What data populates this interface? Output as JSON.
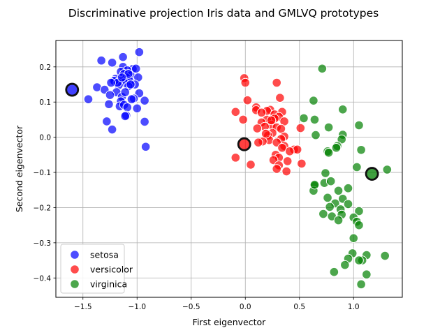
{
  "chart_data": {
    "type": "scatter",
    "title": "Discriminative projection Iris data and GMLVQ prototypes",
    "xlabel": "First eigenvector",
    "ylabel": "Second eigenvector",
    "xlim": [
      -1.75,
      1.45
    ],
    "ylim": [
      -0.455,
      0.275
    ],
    "xticks": [
      -1.5,
      -1.0,
      -0.5,
      0.0,
      0.5,
      1.0
    ],
    "xtick_labels": [
      "−1.5",
      "−1.0",
      "−0.5",
      "0.0",
      "0.5",
      "1.0"
    ],
    "yticks": [
      -0.4,
      -0.3,
      -0.2,
      -0.1,
      0.0,
      0.1,
      0.2
    ],
    "ytick_labels": [
      "−0.4",
      "−0.3",
      "−0.2",
      "−0.1",
      "0.0",
      "0.1",
      "0.2"
    ],
    "grid": true,
    "legend_position": "lower-left",
    "series": [
      {
        "name": "setosa",
        "color": "#0000ff",
        "points": [
          [
            -0.98,
            0.242
          ],
          [
            -1.13,
            0.228
          ],
          [
            -1.33,
            0.218
          ],
          [
            -1.23,
            0.212
          ],
          [
            -1.13,
            0.2
          ],
          [
            -1.04,
            0.194
          ],
          [
            -1.09,
            0.19
          ],
          [
            -1.15,
            0.186
          ],
          [
            -1.12,
            0.18
          ],
          [
            -1.06,
            0.176
          ],
          [
            -1.1,
            0.17
          ],
          [
            -0.99,
            0.17
          ],
          [
            -1.2,
            0.166
          ],
          [
            -1.22,
            0.16
          ],
          [
            -1.15,
            0.16
          ],
          [
            -1.07,
            0.16
          ],
          [
            -1.12,
            0.155
          ],
          [
            -1.02,
            0.15
          ],
          [
            -1.17,
            0.148
          ],
          [
            -1.08,
            0.145
          ],
          [
            -1.37,
            0.142
          ],
          [
            -1.3,
            0.135
          ],
          [
            -1.19,
            0.128
          ],
          [
            -0.98,
            0.125
          ],
          [
            -1.25,
            0.12
          ],
          [
            -1.14,
            0.115
          ],
          [
            -1.03,
            0.11
          ],
          [
            -1.45,
            0.108
          ],
          [
            -1.05,
            0.108
          ],
          [
            -0.93,
            0.104
          ],
          [
            -1.15,
            0.102
          ],
          [
            -1.26,
            0.094
          ],
          [
            -1.16,
            0.088
          ],
          [
            -1.12,
            0.092
          ],
          [
            -1.09,
            0.085
          ],
          [
            -1.0,
            0.082
          ],
          [
            -1.1,
            0.062
          ],
          [
            -1.11,
            0.06
          ],
          [
            -1.28,
            0.045
          ],
          [
            -0.93,
            0.044
          ],
          [
            -1.23,
            0.022
          ],
          [
            -0.92,
            -0.027
          ],
          [
            -1.21,
            0.16
          ],
          [
            -1.18,
            0.155
          ],
          [
            -1.08,
            0.18
          ],
          [
            -1.14,
            0.17
          ],
          [
            -1.11,
            0.128
          ],
          [
            -1.01,
            0.195
          ],
          [
            -1.24,
            0.155
          ],
          [
            -1.06,
            0.15
          ]
        ]
      },
      {
        "name": "versicolor",
        "color": "#ff0000",
        "points": [
          [
            -0.01,
            0.168
          ],
          [
            0.29,
            0.155
          ],
          [
            -0.0,
            0.155
          ],
          [
            0.32,
            0.112
          ],
          [
            0.02,
            0.105
          ],
          [
            0.1,
            0.085
          ],
          [
            0.1,
            0.077
          ],
          [
            -0.09,
            0.072
          ],
          [
            0.34,
            0.072
          ],
          [
            0.23,
            0.078
          ],
          [
            0.2,
            0.075
          ],
          [
            0.15,
            0.07
          ],
          [
            0.27,
            0.065
          ],
          [
            0.31,
            0.058
          ],
          [
            0.27,
            0.053
          ],
          [
            0.2,
            0.05
          ],
          [
            -0.02,
            0.05
          ],
          [
            0.36,
            0.045
          ],
          [
            0.15,
            0.042
          ],
          [
            0.24,
            0.035
          ],
          [
            0.18,
            0.03
          ],
          [
            0.11,
            0.025
          ],
          [
            0.29,
            0.028
          ],
          [
            0.33,
            0.024
          ],
          [
            0.51,
            0.026
          ],
          [
            0.25,
            0.012
          ],
          [
            0.21,
            0.005
          ],
          [
            0.36,
            0.002
          ],
          [
            0.33,
            -0.005
          ],
          [
            0.22,
            -0.008
          ],
          [
            0.16,
            -0.012
          ],
          [
            0.12,
            -0.015
          ],
          [
            0.29,
            -0.015
          ],
          [
            0.36,
            -0.025
          ],
          [
            0.34,
            -0.03
          ],
          [
            0.45,
            -0.035
          ],
          [
            0.48,
            -0.035
          ],
          [
            0.41,
            -0.04
          ],
          [
            0.28,
            -0.05
          ],
          [
            0.31,
            -0.058
          ],
          [
            -0.09,
            -0.058
          ],
          [
            0.26,
            -0.065
          ],
          [
            0.39,
            -0.068
          ],
          [
            0.52,
            -0.075
          ],
          [
            0.05,
            -0.078
          ],
          [
            0.31,
            -0.08
          ],
          [
            0.29,
            -0.09
          ],
          [
            0.38,
            -0.097
          ],
          [
            0.24,
            0.048
          ],
          [
            0.19,
            0.01
          ]
        ]
      },
      {
        "name": "virginica",
        "color": "#008000",
        "points": [
          [
            0.71,
            0.195
          ],
          [
            0.63,
            0.104
          ],
          [
            0.9,
            0.079
          ],
          [
            0.54,
            0.054
          ],
          [
            0.64,
            0.05
          ],
          [
            0.77,
            0.028
          ],
          [
            0.65,
            0.006
          ],
          [
            0.9,
            0.007
          ],
          [
            1.05,
            0.034
          ],
          [
            0.89,
            -0.006
          ],
          [
            0.85,
            -0.025
          ],
          [
            0.84,
            -0.03
          ],
          [
            1.07,
            -0.036
          ],
          [
            0.76,
            -0.04
          ],
          [
            0.77,
            -0.044
          ],
          [
            1.03,
            -0.085
          ],
          [
            1.31,
            -0.092
          ],
          [
            0.74,
            -0.102
          ],
          [
            0.64,
            -0.138
          ],
          [
            0.73,
            -0.13
          ],
          [
            0.79,
            -0.125
          ],
          [
            0.63,
            -0.152
          ],
          [
            0.86,
            -0.152
          ],
          [
            0.95,
            -0.145
          ],
          [
            0.76,
            -0.172
          ],
          [
            0.83,
            -0.188
          ],
          [
            0.9,
            -0.175
          ],
          [
            0.95,
            -0.19
          ],
          [
            0.78,
            -0.198
          ],
          [
            1.05,
            -0.21
          ],
          [
            0.88,
            -0.205
          ],
          [
            0.72,
            -0.218
          ],
          [
            0.8,
            -0.225
          ],
          [
            0.89,
            -0.22
          ],
          [
            1.0,
            -0.228
          ],
          [
            0.86,
            -0.236
          ],
          [
            1.03,
            -0.24
          ],
          [
            1.05,
            -0.25
          ],
          [
            1.0,
            -0.287
          ],
          [
            0.99,
            -0.33
          ],
          [
            1.12,
            -0.335
          ],
          [
            1.29,
            -0.337
          ],
          [
            0.95,
            -0.345
          ],
          [
            1.08,
            -0.35
          ],
          [
            1.05,
            -0.35
          ],
          [
            0.92,
            -0.363
          ],
          [
            0.82,
            -0.383
          ],
          [
            1.12,
            -0.39
          ],
          [
            1.07,
            -0.418
          ],
          [
            0.64,
            -0.135
          ]
        ]
      }
    ],
    "prototypes": [
      {
        "class": "setosa",
        "color": "#0000ff",
        "x": -1.6,
        "y": 0.135
      },
      {
        "class": "versicolor",
        "color": "#ff0000",
        "x": -0.01,
        "y": -0.02
      },
      {
        "class": "virginica",
        "color": "#008000",
        "x": 1.17,
        "y": -0.104
      }
    ]
  }
}
